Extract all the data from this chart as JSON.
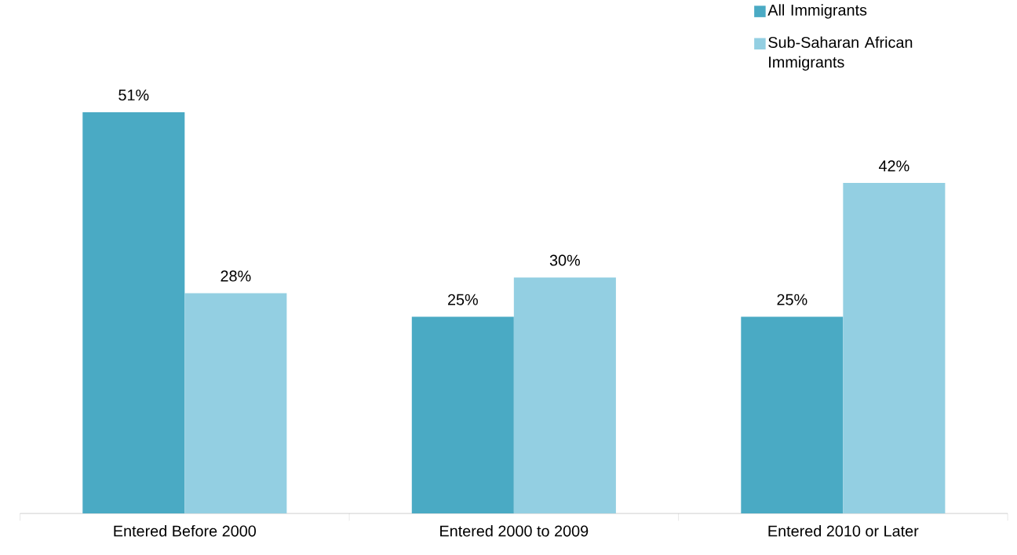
{
  "chart_data": {
    "type": "bar",
    "categories": [
      "Entered Before 2000",
      "Entered 2000 to 2009",
      "Entered 2010 or Later"
    ],
    "series": [
      {
        "name": "All Immigrants",
        "color": "#4aaac4",
        "values": [
          51,
          25,
          25
        ],
        "value_labels": [
          "51%",
          "25%",
          "25%"
        ]
      },
      {
        "name": "Sub-Saharan African Immigrants",
        "color": "#93cfe2",
        "values": [
          28,
          30,
          42
        ],
        "value_labels": [
          "28%",
          "30%",
          "42%"
        ]
      }
    ],
    "legend": "top right"
  }
}
